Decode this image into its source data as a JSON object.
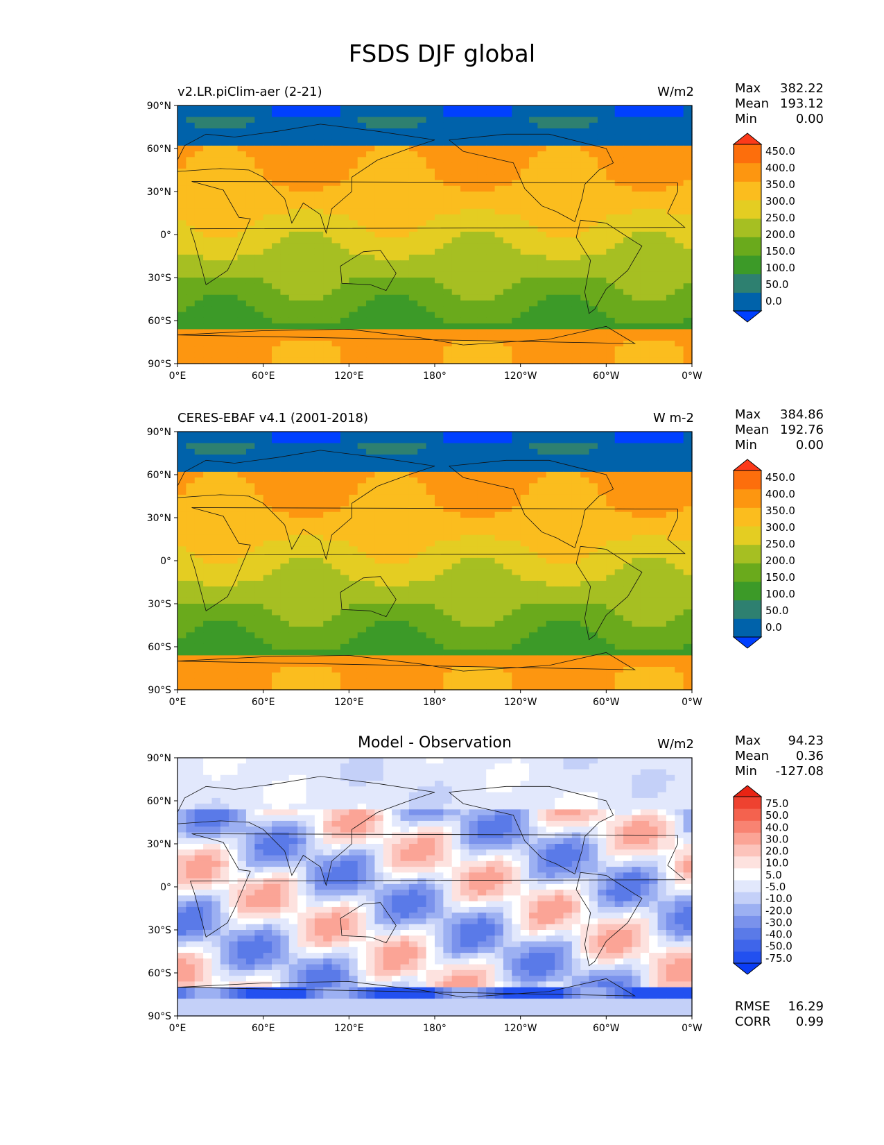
{
  "figure": {
    "title": "FSDS DJF global"
  },
  "axes": {
    "lat_ticks": [
      "90°N",
      "60°N",
      "30°N",
      "0°",
      "30°S",
      "60°S",
      "90°S"
    ],
    "lon_ticks": [
      "0°E",
      "60°E",
      "120°E",
      "180°",
      "120°W",
      "60°W",
      "0°W"
    ]
  },
  "panels": [
    {
      "left_title": "v2.LR.piClim-aer (2-21)",
      "center_title": "",
      "units": "W/m2",
      "stats": [
        {
          "label": "Max",
          "value": "382.22"
        },
        {
          "label": "Mean",
          "value": "193.12"
        },
        {
          "label": "Min",
          "value": "0.00"
        }
      ],
      "colorbar": {
        "labels": [
          "450.0",
          "400.0",
          "350.0",
          "300.0",
          "250.0",
          "200.0",
          "150.0",
          "100.0",
          "50.0",
          "0.0"
        ],
        "colors": [
          "#0040ff",
          "#0062aa",
          "#2e8070",
          "#3c9a28",
          "#6aaa1c",
          "#a6bf22",
          "#e4cd22",
          "#fbbd1e",
          "#fd9610",
          "#fd6e0c",
          "#fc3a1a"
        ]
      }
    },
    {
      "left_title": "CERES-EBAF v4.1 (2001-2018)",
      "center_title": "",
      "units": "W m-2",
      "stats": [
        {
          "label": "Max",
          "value": "384.86"
        },
        {
          "label": "Mean",
          "value": "192.76"
        },
        {
          "label": "Min",
          "value": "0.00"
        }
      ],
      "colorbar": {
        "labels": [
          "450.0",
          "400.0",
          "350.0",
          "300.0",
          "250.0",
          "200.0",
          "150.0",
          "100.0",
          "50.0",
          "0.0"
        ],
        "colors": [
          "#0040ff",
          "#0062aa",
          "#2e8070",
          "#3c9a28",
          "#6aaa1c",
          "#a6bf22",
          "#e4cd22",
          "#fbbd1e",
          "#fd9610",
          "#fd6e0c",
          "#fc3a1a"
        ]
      }
    },
    {
      "left_title": "",
      "center_title": "Model - Observation",
      "units": "W/m2",
      "stats": [
        {
          "label": "Max",
          "value": "94.23"
        },
        {
          "label": "Mean",
          "value": "0.36"
        },
        {
          "label": "Min",
          "value": "-127.08"
        }
      ],
      "colorbar": {
        "labels": [
          "75.0",
          "50.0",
          "40.0",
          "30.0",
          "20.0",
          "10.0",
          "5.0",
          "-5.0",
          "-10.0",
          "-20.0",
          "-30.0",
          "-40.0",
          "-50.0",
          "-75.0"
        ],
        "colors": [
          "#0a3cf5",
          "#2250f0",
          "#3f65ea",
          "#5a7ae8",
          "#7a92ec",
          "#9cb0f2",
          "#c4d0f8",
          "#e2e8fc",
          "#ffffff",
          "#fde2df",
          "#fcc3bb",
          "#fba496",
          "#f88372",
          "#f4624e",
          "#ee4230",
          "#e82414"
        ]
      },
      "metrics": [
        {
          "label": "RMSE",
          "value": "16.29"
        },
        {
          "label": "CORR",
          "value": "0.99"
        }
      ]
    }
  ]
}
